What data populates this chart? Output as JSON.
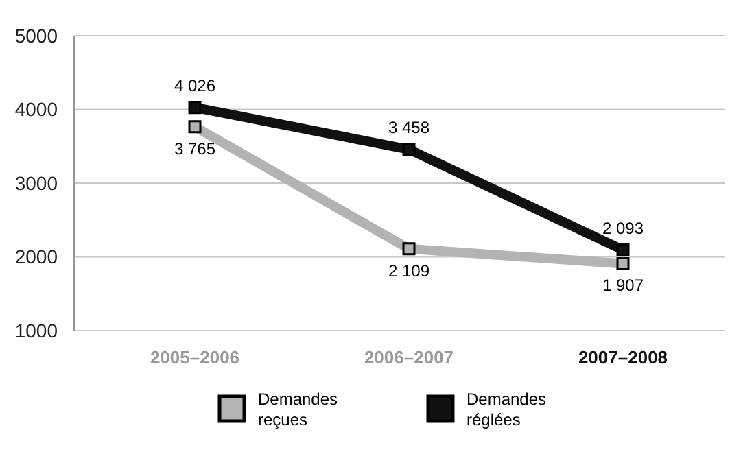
{
  "chart_data": {
    "type": "line",
    "categories": [
      "2005–2006",
      "2006–2007",
      "2007–2008"
    ],
    "series": [
      {
        "name": "Demandes reçues",
        "color": "#b3b3b3",
        "values": [
          3765,
          2109,
          1907
        ],
        "value_labels": [
          "3 765",
          "2 109",
          "1 907"
        ]
      },
      {
        "name": "Demandes réglées",
        "color": "#111111",
        "values": [
          4026,
          3458,
          2093
        ],
        "value_labels": [
          "4 026",
          "3 458",
          "2 093"
        ]
      }
    ],
    "ylim": [
      1000,
      5000
    ],
    "yticks": [
      1000,
      2000,
      3000,
      4000,
      5000
    ],
    "grid": "y",
    "legend": "bottom",
    "marker": "square",
    "line_style": "solid"
  }
}
